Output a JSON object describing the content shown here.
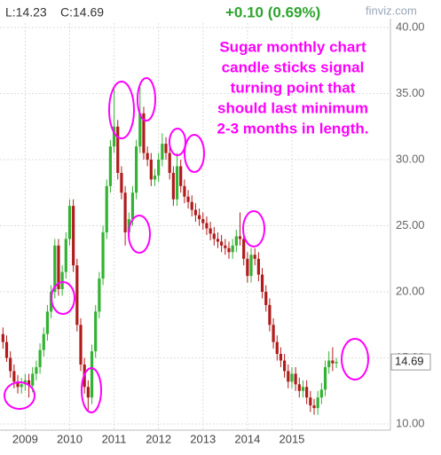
{
  "header": {
    "low": "L:14.23",
    "close": "C:14.69",
    "change": "+0.10 (0.69%)",
    "brand": "finviz.com"
  },
  "chart_data": {
    "type": "candlestick",
    "annotation": [
      "Sugar monthly chart",
      "candle sticks signal",
      "turning point that",
      "should last minimum",
      "2-3 months in length."
    ],
    "up_color": "#33b233",
    "down_color": "#b01c1c",
    "grid": true,
    "xlim": [
      -0.8,
      104.6
    ],
    "xticks": [
      {
        "value": 6,
        "label": "2009"
      },
      {
        "value": 18,
        "label": "2010"
      },
      {
        "value": 30,
        "label": "2011"
      },
      {
        "value": 42,
        "label": "2012"
      },
      {
        "value": 54,
        "label": "2013"
      },
      {
        "value": 66,
        "label": "2014"
      },
      {
        "value": 78,
        "label": "2015"
      }
    ],
    "ylim": [
      10,
      40
    ],
    "yticks": [
      {
        "value": 10,
        "label": "10.00"
      },
      {
        "value": 15,
        "label": "15.00"
      },
      {
        "value": 20,
        "label": "20.00"
      },
      {
        "value": 25,
        "label": "25.00"
      },
      {
        "value": 30,
        "label": "30.00"
      },
      {
        "value": 35,
        "label": "35.00"
      },
      {
        "value": 40,
        "label": "40.00"
      }
    ],
    "open": [
      16.8,
      16.2,
      15.0,
      14.0,
      13.2,
      12.8,
      13.0,
      13.3,
      12.9,
      13.8,
      14.3,
      15.6,
      16.8,
      18.5,
      20.0,
      23.5,
      20.2,
      21.5,
      24.0,
      26.5,
      22.0,
      17.5,
      14.5,
      12.8,
      12.0,
      15.5,
      18.5,
      21.0,
      24.5,
      28.0,
      31.0,
      32.5,
      29.0,
      27.5,
      24.5,
      25.5,
      27.5,
      31.0,
      33.5,
      30.5,
      30.0,
      28.5,
      28.8,
      30.0,
      31.2,
      30.5,
      29.0,
      27.0,
      29.5,
      28.0,
      27.2,
      26.8,
      26.2,
      25.8,
      25.5,
      25.2,
      24.8,
      24.4,
      24.0,
      23.8,
      23.5,
      23.3,
      23.0,
      23.5,
      24.2,
      24.0,
      22.5,
      21.2,
      22.8,
      22.5,
      21.3,
      20.0,
      19.0,
      17.5,
      16.2,
      15.3,
      14.8,
      14.0,
      13.2,
      13.8,
      13.0,
      12.5,
      12.8,
      12.0,
      11.4,
      11.2,
      12.0,
      12.6,
      14.3,
      14.8,
      14.59
    ],
    "high": [
      17.3,
      16.7,
      15.5,
      14.5,
      13.7,
      13.5,
      13.8,
      13.8,
      14.3,
      14.8,
      16.1,
      17.3,
      19.0,
      20.5,
      24.0,
      24.0,
      22.0,
      24.5,
      27.0,
      27.0,
      22.5,
      18.0,
      15.0,
      13.3,
      16.0,
      19.0,
      21.5,
      25.0,
      28.5,
      31.5,
      35.5,
      33.0,
      29.5,
      28.0,
      26.0,
      28.0,
      31.5,
      35.5,
      34.0,
      31.0,
      30.5,
      29.3,
      30.5,
      32.0,
      31.7,
      31.0,
      29.5,
      30.5,
      30.0,
      28.5,
      27.7,
      27.3,
      26.7,
      26.3,
      26.0,
      25.7,
      25.3,
      24.9,
      24.5,
      24.3,
      24.0,
      23.8,
      24.0,
      24.7,
      26.0,
      24.5,
      23.0,
      23.3,
      23.3,
      23.0,
      21.8,
      20.5,
      19.5,
      18.0,
      16.7,
      15.8,
      15.3,
      14.5,
      14.3,
      14.3,
      13.5,
      13.3,
      13.3,
      12.5,
      11.9,
      12.5,
      13.1,
      14.8,
      15.5,
      15.8,
      15.0
    ],
    "low": [
      15.7,
      14.7,
      13.5,
      12.7,
      12.3,
      12.3,
      12.5,
      12.0,
      12.4,
      13.3,
      13.8,
      15.1,
      16.3,
      18.0,
      19.5,
      19.7,
      19.7,
      21.0,
      23.5,
      21.5,
      17.0,
      14.0,
      12.3,
      11.0,
      11.5,
      15.0,
      18.0,
      20.5,
      24.0,
      27.5,
      30.5,
      28.5,
      27.0,
      23.5,
      24.0,
      25.0,
      27.0,
      30.5,
      30.0,
      29.5,
      28.0,
      28.0,
      28.3,
      29.5,
      30.0,
      28.5,
      26.5,
      26.5,
      27.5,
      26.7,
      26.3,
      25.7,
      25.3,
      25.0,
      24.7,
      24.3,
      23.9,
      23.5,
      23.3,
      23.0,
      22.8,
      22.5,
      22.5,
      23.0,
      23.5,
      22.0,
      20.7,
      20.7,
      22.0,
      20.8,
      19.5,
      18.5,
      17.0,
      15.7,
      14.8,
      14.3,
      13.5,
      12.7,
      12.7,
      12.5,
      12.0,
      12.0,
      11.5,
      10.9,
      10.7,
      10.7,
      11.5,
      12.1,
      13.8,
      14.0,
      14.23
    ],
    "close": [
      16.2,
      15.0,
      14.0,
      13.2,
      12.8,
      13.0,
      13.3,
      12.9,
      13.8,
      14.3,
      15.6,
      16.8,
      18.5,
      20.0,
      23.5,
      20.2,
      21.5,
      24.0,
      26.5,
      22.0,
      17.5,
      14.5,
      12.8,
      12.0,
      15.5,
      18.5,
      21.0,
      24.5,
      28.0,
      31.0,
      32.5,
      29.0,
      27.5,
      24.5,
      25.5,
      27.5,
      31.0,
      33.5,
      30.5,
      30.0,
      28.5,
      28.8,
      30.0,
      31.2,
      30.5,
      29.0,
      27.0,
      29.5,
      28.0,
      27.2,
      26.8,
      26.2,
      25.8,
      25.5,
      25.2,
      24.8,
      24.4,
      24.0,
      23.8,
      23.5,
      23.3,
      23.0,
      23.5,
      24.2,
      24.0,
      22.5,
      21.2,
      22.8,
      22.5,
      21.3,
      20.0,
      19.0,
      17.5,
      16.2,
      15.3,
      14.8,
      14.0,
      13.2,
      13.8,
      13.0,
      12.5,
      12.8,
      12.0,
      11.4,
      11.2,
      12.0,
      12.6,
      14.3,
      14.8,
      14.59,
      14.69
    ]
  }
}
